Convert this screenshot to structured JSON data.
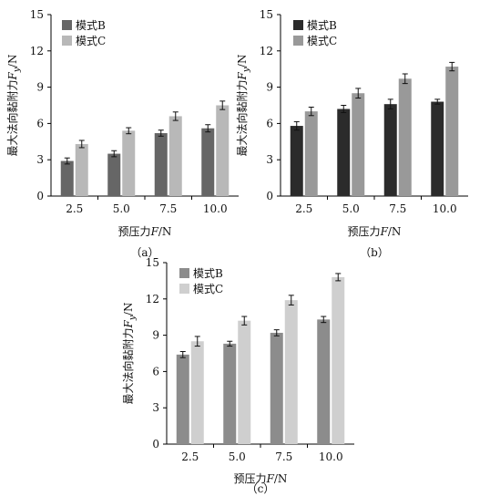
{
  "chart_data": [
    {
      "type": "bar",
      "panel_label": "（a）",
      "categories": [
        "2.5",
        "5.0",
        "7.5",
        "10.0"
      ],
      "ylabel_main": "最大法向黏附力",
      "ylabel_symbol": "F",
      "ylabel_subscript": "y",
      "ylabel_unit": "/N",
      "xlabel_main": "预压力",
      "xlabel_symbol": "F",
      "xlabel_unit": "/N",
      "ylim": [
        0,
        15
      ],
      "yticks": [
        0,
        3,
        6,
        9,
        12,
        15
      ],
      "legend_position": "top-left",
      "series": [
        {
          "name": "模式B",
          "color": "#666666",
          "values": [
            2.9,
            3.5,
            5.2,
            5.6
          ],
          "errors": [
            0.25,
            0.25,
            0.25,
            0.3
          ]
        },
        {
          "name": "模式C",
          "color": "#b8b8b8",
          "values": [
            4.3,
            5.4,
            6.6,
            7.5
          ],
          "errors": [
            0.3,
            0.25,
            0.35,
            0.35
          ]
        }
      ]
    },
    {
      "type": "bar",
      "panel_label": "（b）",
      "categories": [
        "2.5",
        "5.0",
        "7.5",
        "10.0"
      ],
      "ylabel_main": "最大法向黏附力",
      "ylabel_symbol": "F",
      "ylabel_subscript": "y",
      "ylabel_unit": "/N",
      "xlabel_main": "预压力",
      "xlabel_symbol": "F",
      "xlabel_unit": "/N",
      "ylim": [
        0,
        15
      ],
      "yticks": [
        0,
        3,
        6,
        9,
        12,
        15
      ],
      "legend_position": "top-left",
      "series": [
        {
          "name": "模式B",
          "color": "#2b2b2b",
          "values": [
            5.8,
            7.2,
            7.6,
            7.8
          ],
          "errors": [
            0.35,
            0.3,
            0.4,
            0.2
          ]
        },
        {
          "name": "模式C",
          "color": "#999999",
          "values": [
            7.0,
            8.5,
            9.7,
            10.7
          ],
          "errors": [
            0.35,
            0.4,
            0.4,
            0.35
          ]
        }
      ]
    },
    {
      "type": "bar",
      "panel_label": "（c）",
      "categories": [
        "2.5",
        "5.0",
        "7.5",
        "10.0"
      ],
      "ylabel_main": "最大法向黏附力",
      "ylabel_symbol": "F",
      "ylabel_subscript": "y",
      "ylabel_unit": "/N",
      "xlabel_main": "预压力",
      "xlabel_symbol": "F",
      "xlabel_unit": "/N",
      "ylim": [
        0,
        15
      ],
      "yticks": [
        0,
        3,
        6,
        9,
        12,
        15
      ],
      "legend_position": "top-left",
      "series": [
        {
          "name": "模式B",
          "color": "#8c8c8c",
          "values": [
            7.4,
            8.3,
            9.2,
            10.3
          ],
          "errors": [
            0.25,
            0.2,
            0.25,
            0.25
          ]
        },
        {
          "name": "模式C",
          "color": "#cfcfcf",
          "values": [
            8.5,
            10.2,
            11.9,
            13.8
          ],
          "errors": [
            0.4,
            0.35,
            0.4,
            0.3
          ]
        }
      ]
    }
  ]
}
